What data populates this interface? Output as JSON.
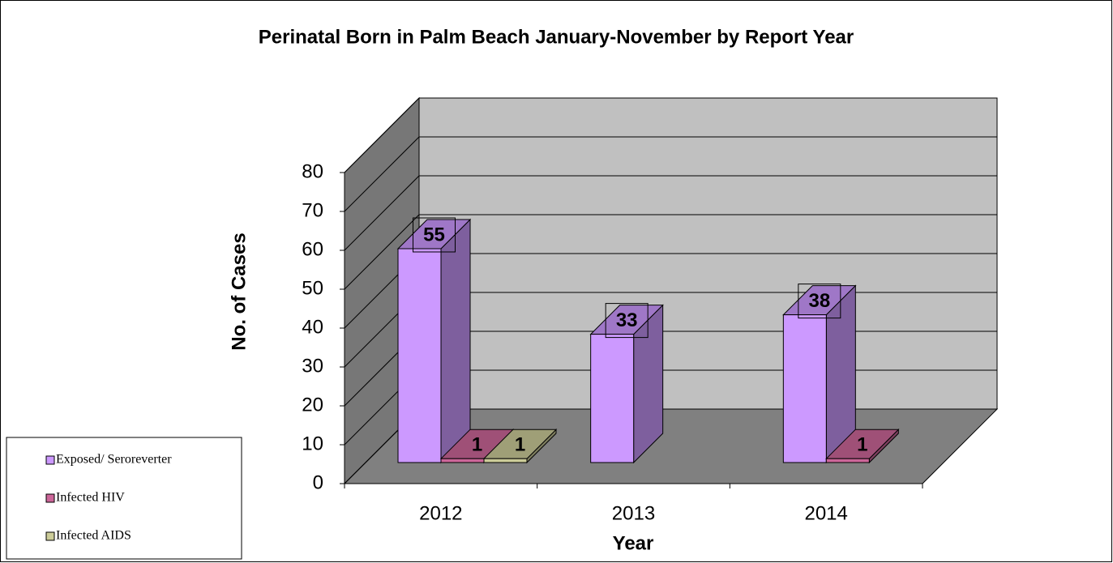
{
  "chart_data": {
    "type": "bar3d",
    "title": "Perinatal Born in Palm Beach January-November by Report Year",
    "x_label": "Year",
    "y_label": "No. of Cases",
    "categories": [
      "2012",
      "2013",
      "2014"
    ],
    "series": [
      {
        "name": "Exposed/ Seroreverter",
        "color": "#cc99ff",
        "values": [
          55,
          33,
          38
        ]
      },
      {
        "name": "Infected HIV",
        "color": "#cc6699",
        "values": [
          1,
          null,
          1
        ]
      },
      {
        "name": "Infected AIDS",
        "color": "#cccc99",
        "values": [
          1,
          null,
          null
        ]
      }
    ],
    "ylim": [
      0,
      80
    ],
    "yticks": [
      0,
      10,
      20,
      30,
      40,
      50,
      60,
      70,
      80
    ],
    "grid": true,
    "legend": "lower left"
  }
}
